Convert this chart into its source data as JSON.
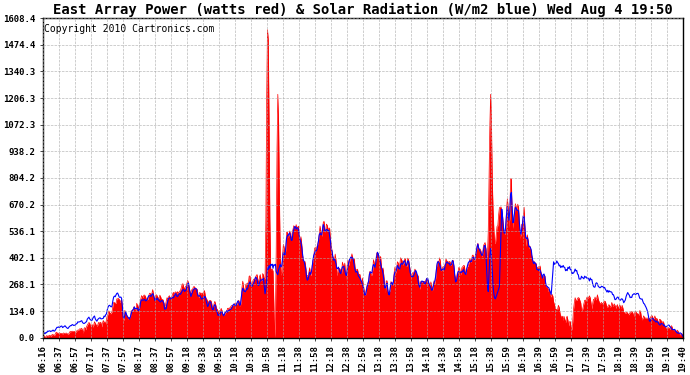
{
  "title": "East Array Power (watts red) & Solar Radiation (W/m2 blue) Wed Aug 4 19:50",
  "copyright": "Copyright 2010 Cartronics.com",
  "ymin": 0.0,
  "ymax": 1608.4,
  "yticks": [
    0.0,
    134.0,
    268.1,
    402.1,
    536.1,
    670.2,
    804.2,
    938.2,
    1072.3,
    1206.3,
    1340.3,
    1474.4,
    1608.4
  ],
  "xtick_labels": [
    "06:16",
    "06:37",
    "06:57",
    "07:17",
    "07:37",
    "07:57",
    "08:17",
    "08:37",
    "08:57",
    "09:18",
    "09:38",
    "09:58",
    "10:18",
    "10:38",
    "10:58",
    "11:18",
    "11:38",
    "11:58",
    "12:18",
    "12:38",
    "12:58",
    "13:18",
    "13:38",
    "13:58",
    "14:18",
    "14:38",
    "14:58",
    "15:18",
    "15:38",
    "15:59",
    "16:19",
    "16:39",
    "16:59",
    "17:19",
    "17:39",
    "17:59",
    "18:19",
    "18:39",
    "18:59",
    "19:19",
    "19:40"
  ],
  "background_color": "#ffffff",
  "grid_color": "#aaaaaa",
  "red_color": "#ff0000",
  "blue_color": "#0000ff",
  "title_fontsize": 10,
  "copyright_fontsize": 7,
  "tick_fontsize": 6.5
}
